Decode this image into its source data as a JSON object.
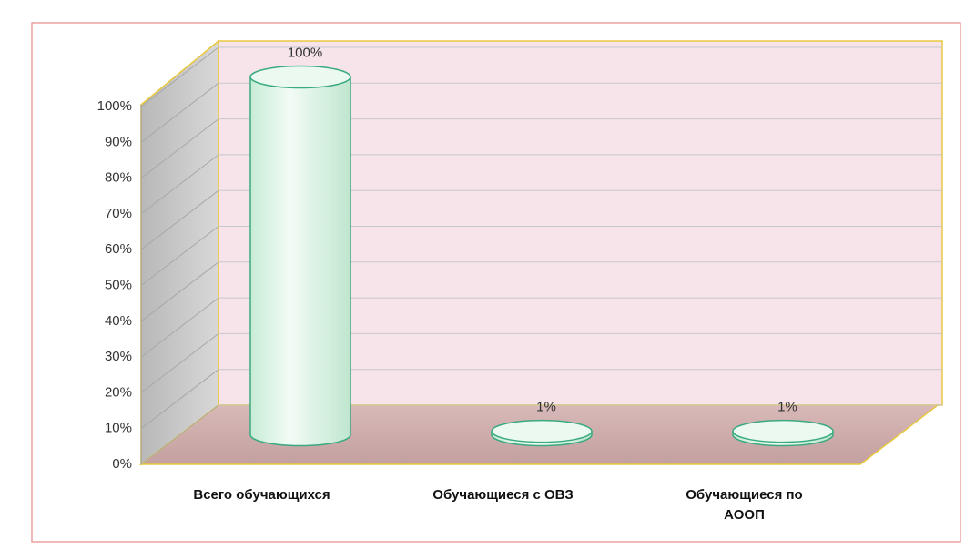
{
  "chart_data": {
    "type": "bar3d",
    "categories": [
      "Всего обучающихся",
      "Обучающиеся с ОВЗ",
      "Обучающиеся по АООП"
    ],
    "values": [
      100,
      1,
      1
    ],
    "value_labels": [
      "100%",
      "1%",
      "1%"
    ],
    "color": "#e2f6ea",
    "ylim": [
      0,
      100
    ],
    "yticks": [
      {
        "value": 0,
        "label": "0%"
      },
      {
        "value": 10,
        "label": "10%"
      },
      {
        "value": 20,
        "label": "20%"
      },
      {
        "value": 30,
        "label": "30%"
      },
      {
        "value": 40,
        "label": "40%"
      },
      {
        "value": 50,
        "label": "50%"
      },
      {
        "value": 60,
        "label": "60%"
      },
      {
        "value": 70,
        "label": "70%"
      },
      {
        "value": 80,
        "label": "80%"
      },
      {
        "value": 90,
        "label": "90%"
      },
      {
        "value": 100,
        "label": "100%"
      }
    ],
    "grid": true
  }
}
